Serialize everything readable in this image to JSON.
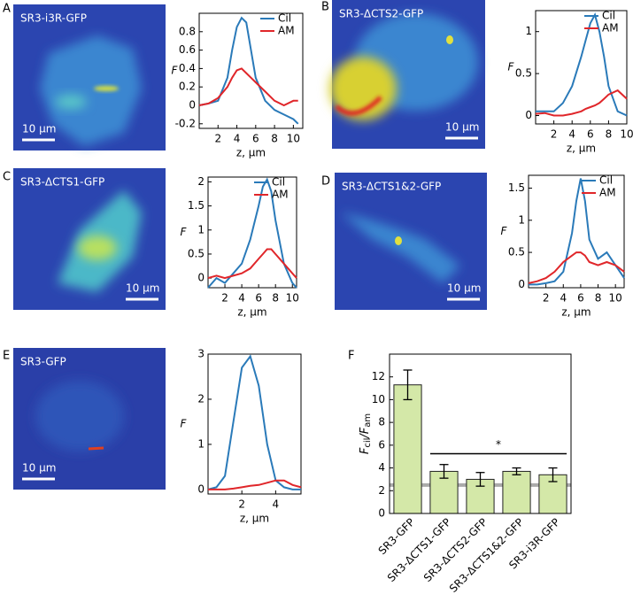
{
  "panels": [
    {
      "letter": "A",
      "image_label": "SR3-i3R-GFP",
      "scale_bar": "10 μm"
    },
    {
      "letter": "B",
      "image_label": "SR3-ΔCTS2-GFP",
      "scale_bar": "10 μm"
    },
    {
      "letter": "C",
      "image_label": "SR3-ΔCTS1-GFP",
      "scale_bar": "10 μm"
    },
    {
      "letter": "D",
      "image_label": "SR3-ΔCTS1&2-GFP",
      "scale_bar": "10 μm"
    },
    {
      "letter": "E",
      "image_label": "SR3-GFP",
      "scale_bar": "10 μm"
    },
    {
      "letter": "F"
    }
  ],
  "chart_data": [
    {
      "type": "line",
      "xlabel": "z, μm",
      "ylabel": "F",
      "legend": "upper right",
      "x": [
        0,
        1,
        2,
        3,
        3.5,
        4,
        4.5,
        5,
        5.5,
        6,
        7,
        8,
        9,
        10,
        10.5
      ],
      "series": [
        {
          "name": "Cil",
          "color": "#2a7ab9",
          "values": [
            0,
            0.02,
            0.05,
            0.3,
            0.6,
            0.85,
            0.95,
            0.9,
            0.6,
            0.3,
            0.05,
            -0.05,
            -0.1,
            -0.15,
            -0.2
          ]
        },
        {
          "name": "AM",
          "color": "#e0262a",
          "values": [
            0,
            0.02,
            0.08,
            0.2,
            0.3,
            0.38,
            0.4,
            0.35,
            0.3,
            0.25,
            0.15,
            0.05,
            0,
            0.05,
            0.05
          ]
        }
      ],
      "xlim": [
        0,
        11
      ],
      "xticks": [
        2,
        4,
        6,
        8,
        10
      ],
      "ylim": [
        -0.25,
        1.0
      ],
      "yticks": [
        -0.2,
        0,
        0.2,
        0.4,
        0.6,
        0.8
      ]
    },
    {
      "type": "line",
      "xlabel": "z, μm",
      "ylabel": "F",
      "legend": "upper right",
      "x": [
        0,
        1,
        2,
        3,
        4,
        5,
        5.5,
        6,
        6.5,
        7,
        7.5,
        8,
        9,
        10
      ],
      "series": [
        {
          "name": "Cil",
          "color": "#2a7ab9",
          "values": [
            0.05,
            0.05,
            0.05,
            0.15,
            0.35,
            0.7,
            0.9,
            1.1,
            1.2,
            1.0,
            0.7,
            0.35,
            0.05,
            0
          ]
        },
        {
          "name": "AM",
          "color": "#e0262a",
          "values": [
            0.02,
            0.03,
            0,
            0,
            0.02,
            0.05,
            0.08,
            0.1,
            0.12,
            0.15,
            0.2,
            0.25,
            0.3,
            0.2
          ]
        }
      ],
      "xlim": [
        0,
        10
      ],
      "xticks": [
        2,
        4,
        6,
        8,
        10
      ],
      "ylim": [
        -0.1,
        1.25
      ],
      "yticks": [
        0,
        0.5,
        1
      ]
    },
    {
      "type": "line",
      "xlabel": "z, μm",
      "ylabel": "F",
      "legend": "upper right",
      "x": [
        0,
        1,
        2,
        3,
        4,
        5,
        6,
        6.5,
        7,
        7.5,
        8,
        9,
        10,
        10.5
      ],
      "series": [
        {
          "name": "Cil",
          "color": "#2a7ab9",
          "values": [
            -0.2,
            0,
            -0.1,
            0.1,
            0.3,
            0.8,
            1.5,
            1.9,
            2.05,
            1.8,
            1.2,
            0.3,
            -0.1,
            -0.2
          ]
        },
        {
          "name": "AM",
          "color": "#e0262a",
          "values": [
            0,
            0.05,
            0,
            0.05,
            0.1,
            0.2,
            0.4,
            0.5,
            0.6,
            0.6,
            0.5,
            0.3,
            0.1,
            0
          ]
        }
      ],
      "xlim": [
        0,
        10.5
      ],
      "xticks": [
        2,
        4,
        6,
        8,
        10
      ],
      "ylim": [
        -0.2,
        2.1
      ],
      "yticks": [
        0,
        0.5,
        1,
        1.5,
        2
      ]
    },
    {
      "type": "line",
      "xlabel": "z, μm",
      "ylabel": "F",
      "legend": "upper right",
      "x": [
        0,
        1,
        2,
        3,
        4,
        5,
        5.5,
        6,
        6.5,
        7,
        8,
        9,
        10,
        11
      ],
      "series": [
        {
          "name": "Cil",
          "color": "#2a7ab9",
          "values": [
            0,
            0,
            0.02,
            0.05,
            0.2,
            0.8,
            1.3,
            1.65,
            1.3,
            0.7,
            0.4,
            0.5,
            0.3,
            0.1
          ]
        },
        {
          "name": "AM",
          "color": "#e0262a",
          "values": [
            0.02,
            0.05,
            0.1,
            0.2,
            0.35,
            0.45,
            0.5,
            0.5,
            0.45,
            0.35,
            0.3,
            0.35,
            0.3,
            0.2
          ]
        }
      ],
      "xlim": [
        0,
        11
      ],
      "xticks": [
        2,
        4,
        6,
        8,
        10
      ],
      "ylim": [
        -0.05,
        1.7
      ],
      "yticks": [
        0,
        0.5,
        1,
        1.5
      ]
    },
    {
      "type": "line",
      "xlabel": "z, μm",
      "ylabel": "F",
      "x": [
        0,
        0.5,
        1,
        1.5,
        2,
        2.5,
        3,
        3.5,
        4,
        4.5,
        5,
        5.5
      ],
      "series": [
        {
          "color": "#2a7ab9",
          "values": [
            0,
            0.05,
            0.3,
            1.5,
            2.7,
            2.95,
            2.3,
            1.0,
            0.2,
            0.05,
            0,
            0
          ]
        },
        {
          "color": "#e0262a",
          "values": [
            0,
            0,
            0,
            0.02,
            0.05,
            0.08,
            0.1,
            0.15,
            0.2,
            0.2,
            0.1,
            0.05
          ]
        }
      ],
      "xlim": [
        0,
        5.5
      ],
      "xticks": [
        2,
        4
      ],
      "ylim": [
        -0.1,
        3
      ],
      "yticks": [
        0,
        1,
        2,
        3
      ]
    },
    {
      "type": "bar",
      "ylabel": [
        "F",
        "cil",
        "/F",
        "am"
      ],
      "categories": [
        "SR3-GFP",
        "SR3-ΔCTS1-GFP",
        "SR3-ΔCTS2-GFP",
        "SR3-ΔCTS1&2-GFP",
        "SR3-i3R-GFP"
      ],
      "values": [
        11.3,
        3.7,
        3.0,
        3.7,
        3.4
      ],
      "errors": [
        1.3,
        0.6,
        0.6,
        0.3,
        0.6
      ],
      "color": "#d4e8a8",
      "reference_line": 2.5,
      "reference_color": "#aaaaaa",
      "annotation": "*",
      "ylim": [
        0,
        14
      ],
      "yticks": [
        0,
        2,
        4,
        6,
        8,
        10,
        12
      ]
    }
  ]
}
